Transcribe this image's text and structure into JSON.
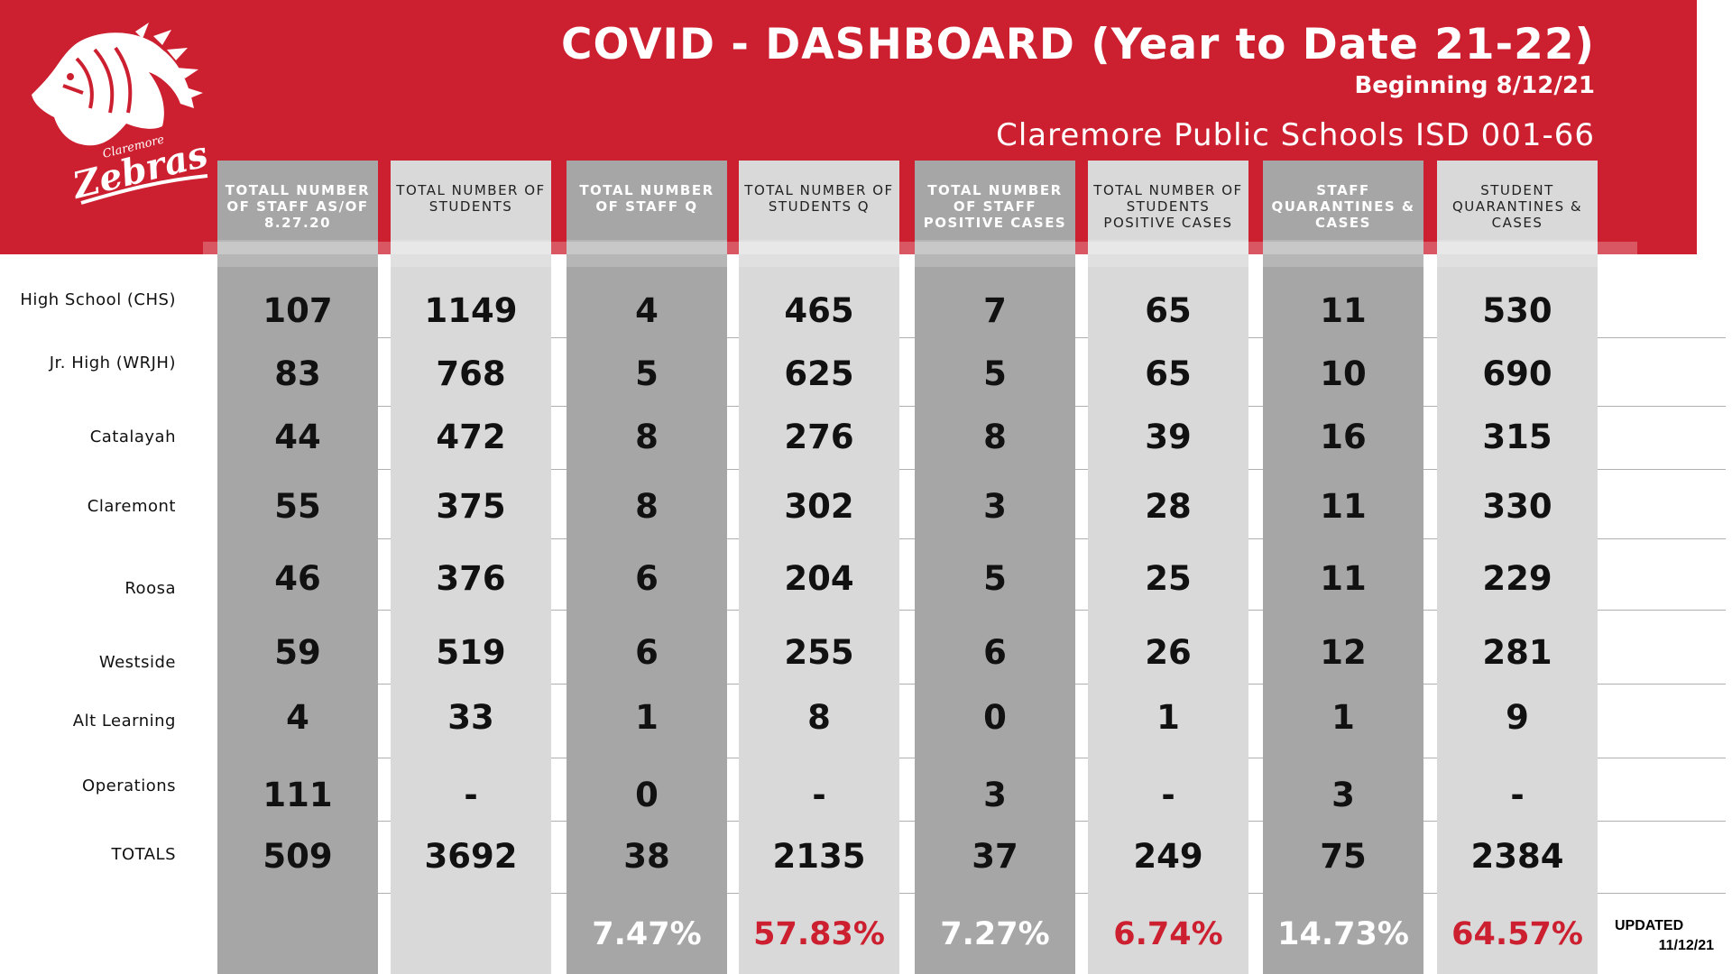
{
  "header": {
    "title": "COVID - DASHBOARD  (Year to Date 21-22)",
    "subtitle": "Beginning 8/12/21",
    "district": "Claremore Public Schools ISD 001-66",
    "logo_text_top": "Claremore",
    "logo_text_main": "Zebras"
  },
  "colors": {
    "brand_red": "#cc1f2f",
    "dark_column": "#a6a6a6",
    "light_column": "#d9d9d9"
  },
  "columns": [
    {
      "header": "TOTALL NUMBER OF STAFF AS/OF 8.27.20",
      "style": "dark",
      "values": [
        "107",
        "83",
        "44",
        "55",
        "46",
        "59",
        "4",
        "111"
      ],
      "total": "509",
      "percent": "",
      "percent_color": ""
    },
    {
      "header": "TOTAL NUMBER OF STUDENTS",
      "style": "light",
      "values": [
        "1149",
        "768",
        "472",
        "375",
        "376",
        "519",
        "33",
        "-"
      ],
      "total": "3692",
      "percent": "",
      "percent_color": ""
    },
    {
      "header": "TOTAL NUMBER OF STAFF Q",
      "style": "dark",
      "values": [
        "4",
        "5",
        "8",
        "8",
        "6",
        "6",
        "1",
        "0"
      ],
      "total": "38",
      "percent": "7.47%",
      "percent_color": "white"
    },
    {
      "header": "TOTAL NUMBER OF STUDENTS Q",
      "style": "light",
      "values": [
        "465",
        "625",
        "276",
        "302",
        "204",
        "255",
        "8",
        "-"
      ],
      "total": "2135",
      "percent": "57.83%",
      "percent_color": "red"
    },
    {
      "header": "TOTAL NUMBER OF STAFF POSITIVE CASES",
      "style": "dark",
      "values": [
        "7",
        "5",
        "8",
        "3",
        "5",
        "6",
        "0",
        "3"
      ],
      "total": "37",
      "percent": "7.27%",
      "percent_color": "white"
    },
    {
      "header": "TOTAL NUMBER OF STUDENTS POSITIVE CASES",
      "style": "light",
      "values": [
        "65",
        "65",
        "39",
        "28",
        "25",
        "26",
        "1",
        "-"
      ],
      "total": "249",
      "percent": "6.74%",
      "percent_color": "red"
    },
    {
      "header": "STAFF QUARANTINES & CASES",
      "style": "dark",
      "values": [
        "11",
        "10",
        "16",
        "11",
        "11",
        "12",
        "1",
        "3"
      ],
      "total": "75",
      "percent": "14.73%",
      "percent_color": "white"
    },
    {
      "header": "STUDENT QUARANTINES & CASES",
      "style": "light",
      "values": [
        "530",
        "690",
        "315",
        "330",
        "229",
        "281",
        "9",
        "-"
      ],
      "total": "2384",
      "percent": "64.57%",
      "percent_color": "red"
    }
  ],
  "rows": [
    {
      "label": "High School (CHS)"
    },
    {
      "label": "Jr. High (WRJH)"
    },
    {
      "label": "Catalayah"
    },
    {
      "label": "Claremont"
    },
    {
      "label": "Roosa"
    },
    {
      "label": "Westside"
    },
    {
      "label": "Alt Learning"
    },
    {
      "label": "Operations"
    }
  ],
  "totals_label": "TOTALS",
  "updated": {
    "label": "UPDATED",
    "date": "11/12/21"
  }
}
